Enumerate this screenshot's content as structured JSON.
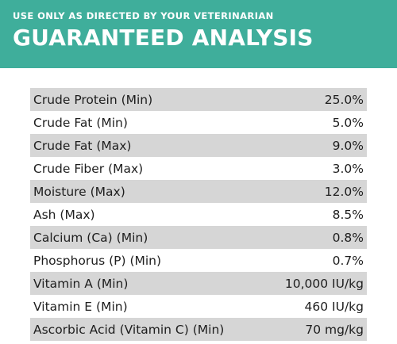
{
  "header": {
    "disclaimer": "USE ONLY AS DIRECTED BY YOUR VETERINARIAN",
    "title": "GUARANTEED ANALYSIS"
  },
  "colors": {
    "banner": "#3fae9b",
    "shaded_row": "#d6d6d6",
    "text": "#1e1e1e"
  },
  "analysis": [
    {
      "label": "Crude Protein (Min)",
      "value": "25.0%"
    },
    {
      "label": "Crude Fat (Min)",
      "value": "5.0%"
    },
    {
      "label": "Crude Fat (Max)",
      "value": "9.0%"
    },
    {
      "label": "Crude Fiber (Max)",
      "value": "3.0%"
    },
    {
      "label": "Moisture (Max)",
      "value": "12.0%"
    },
    {
      "label": "Ash (Max)",
      "value": "8.5%"
    },
    {
      "label": "Calcium (Ca) (Min)",
      "value": "0.8%"
    },
    {
      "label": "Phosphorus (P) (Min)",
      "value": "0.7%"
    },
    {
      "label": "Vitamin A (Min)",
      "value": "10,000 IU/kg"
    },
    {
      "label": "Vitamin E (Min)",
      "value": "460 IU/kg"
    },
    {
      "label": "Ascorbic Acid (Vitamin C) (Min)",
      "value": "70 mg/kg"
    }
  ]
}
